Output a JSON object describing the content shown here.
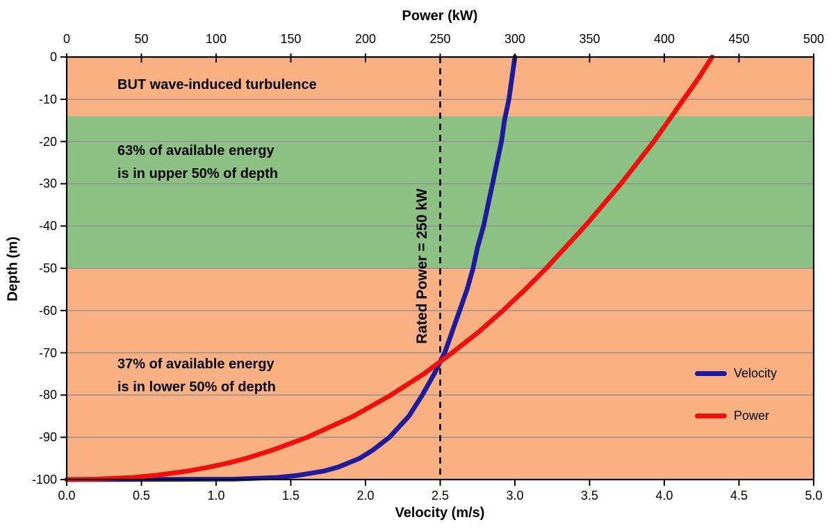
{
  "chart_data": {
    "type": "line",
    "description": "Depth profile of tidal current velocity and power",
    "axes": {
      "top": {
        "label": "Power (kW)",
        "min": 0,
        "max": 500,
        "ticks": [
          0,
          50,
          100,
          150,
          200,
          250,
          300,
          350,
          400,
          450,
          500
        ]
      },
      "bottom": {
        "label": "Velocity (m/s)",
        "min": 0,
        "max": 5,
        "ticks": [
          "0.0",
          "0.5",
          "1.0",
          "1.5",
          "2.0",
          "2.5",
          "3.0",
          "3.5",
          "4.0",
          "4.5",
          "5.0"
        ]
      },
      "left": {
        "label": "Depth (m)",
        "min": -100,
        "max": 0,
        "ticks": [
          0,
          -10,
          -20,
          -30,
          -40,
          -50,
          -60,
          -70,
          -80,
          -90,
          -100
        ]
      }
    },
    "bands": [
      {
        "id": "wave-turbulence-zone",
        "from": 0,
        "to": -14,
        "color": "#F9B183"
      },
      {
        "id": "upper-half-zone",
        "from": -14,
        "to": -50,
        "color": "#8CC183"
      },
      {
        "id": "lower-half-zone",
        "from": -50,
        "to": -100,
        "color": "#F9B183"
      }
    ],
    "series": [
      {
        "name": "Velocity",
        "color": "#1E1B9C",
        "x_axis": "bottom",
        "points": [
          [
            -100,
            0
          ],
          [
            -99.9,
            1.12
          ],
          [
            -99.5,
            1.41
          ],
          [
            -99,
            1.55
          ],
          [
            -98,
            1.72
          ],
          [
            -97,
            1.82
          ],
          [
            -96,
            1.89
          ],
          [
            -95,
            1.96
          ],
          [
            -93,
            2.05
          ],
          [
            -90,
            2.16
          ],
          [
            -85,
            2.29
          ],
          [
            -80,
            2.38
          ],
          [
            -75,
            2.46
          ],
          [
            -70,
            2.53
          ],
          [
            -65,
            2.58
          ],
          [
            -60,
            2.63
          ],
          [
            -55,
            2.68
          ],
          [
            -50,
            2.72
          ],
          [
            -45,
            2.75
          ],
          [
            -40,
            2.79
          ],
          [
            -35,
            2.82
          ],
          [
            -30,
            2.85
          ],
          [
            -25,
            2.88
          ],
          [
            -20,
            2.91
          ],
          [
            -15,
            2.93
          ],
          [
            -10,
            2.96
          ],
          [
            -5,
            2.98
          ],
          [
            0,
            3.0
          ]
        ]
      },
      {
        "name": "Power",
        "color": "#EE0F0F",
        "x_axis": "top",
        "points": [
          [
            -100,
            0
          ],
          [
            -99.9,
            20
          ],
          [
            -99.5,
            44
          ],
          [
            -99,
            60
          ],
          [
            -98,
            81
          ],
          [
            -97,
            96
          ],
          [
            -96,
            109
          ],
          [
            -95,
            120
          ],
          [
            -93,
            138
          ],
          [
            -90,
            161
          ],
          [
            -85,
            192
          ],
          [
            -80,
            217
          ],
          [
            -75,
            239
          ],
          [
            -70,
            258
          ],
          [
            -65,
            276
          ],
          [
            -60,
            292
          ],
          [
            -55,
            307
          ],
          [
            -50,
            321
          ],
          [
            -45,
            334
          ],
          [
            -40,
            347
          ],
          [
            -35,
            359
          ],
          [
            -30,
            371
          ],
          [
            -25,
            382
          ],
          [
            -20,
            393
          ],
          [
            -15,
            403
          ],
          [
            -10,
            413
          ],
          [
            -5,
            423
          ],
          [
            0,
            432
          ]
        ]
      }
    ],
    "reference_line": {
      "axis": "bottom",
      "value": 2.5,
      "equivalent_power_kw": 250,
      "label": "Rated Power = 250 kW",
      "color": "#000000",
      "style": "dashed"
    },
    "annotations": [
      {
        "id": "wave-turbulence",
        "text": "BUT wave-induced turbulence"
      },
      {
        "id": "upper-energy",
        "text": "63% of available energy\nis in upper 50% of depth"
      },
      {
        "id": "lower-energy",
        "text": "37% of available energy\nis in lower 50% of depth"
      }
    ],
    "legend": {
      "position": "right-inside",
      "items": [
        {
          "label": "Velocity",
          "color": "#1E1B9C"
        },
        {
          "label": "Power",
          "color": "#EE0F0F"
        }
      ]
    },
    "colors": {
      "gridline": "#8F8F8F",
      "axis": "#000000",
      "background": "#FFFFFF"
    },
    "grid": "horizontal-only"
  }
}
